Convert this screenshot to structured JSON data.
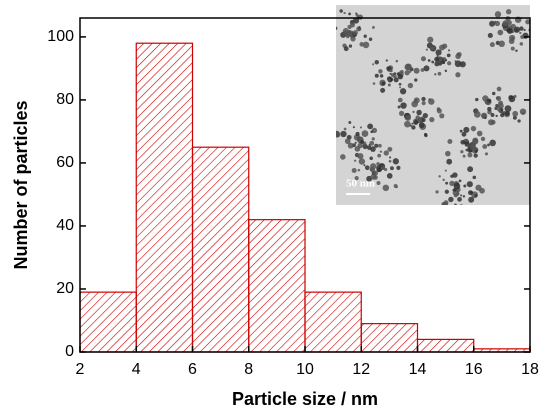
{
  "chart_data": {
    "type": "histogram",
    "xlabel": "Particle size / nm",
    "ylabel": "Number of particles",
    "bins": [
      2,
      4,
      6,
      8,
      10,
      12,
      14,
      16,
      18
    ],
    "values": [
      19,
      98,
      65,
      42,
      19,
      9,
      4,
      1
    ],
    "color": "#cc0000",
    "hatch": true,
    "xlim": [
      2,
      18
    ],
    "xticks": [
      2,
      4,
      6,
      8,
      10,
      12,
      14,
      16,
      18
    ],
    "ylim": [
      0,
      106
    ],
    "yticks": [
      0,
      20,
      40,
      60,
      80,
      100
    ],
    "inset_scale_label": "50 nm"
  }
}
